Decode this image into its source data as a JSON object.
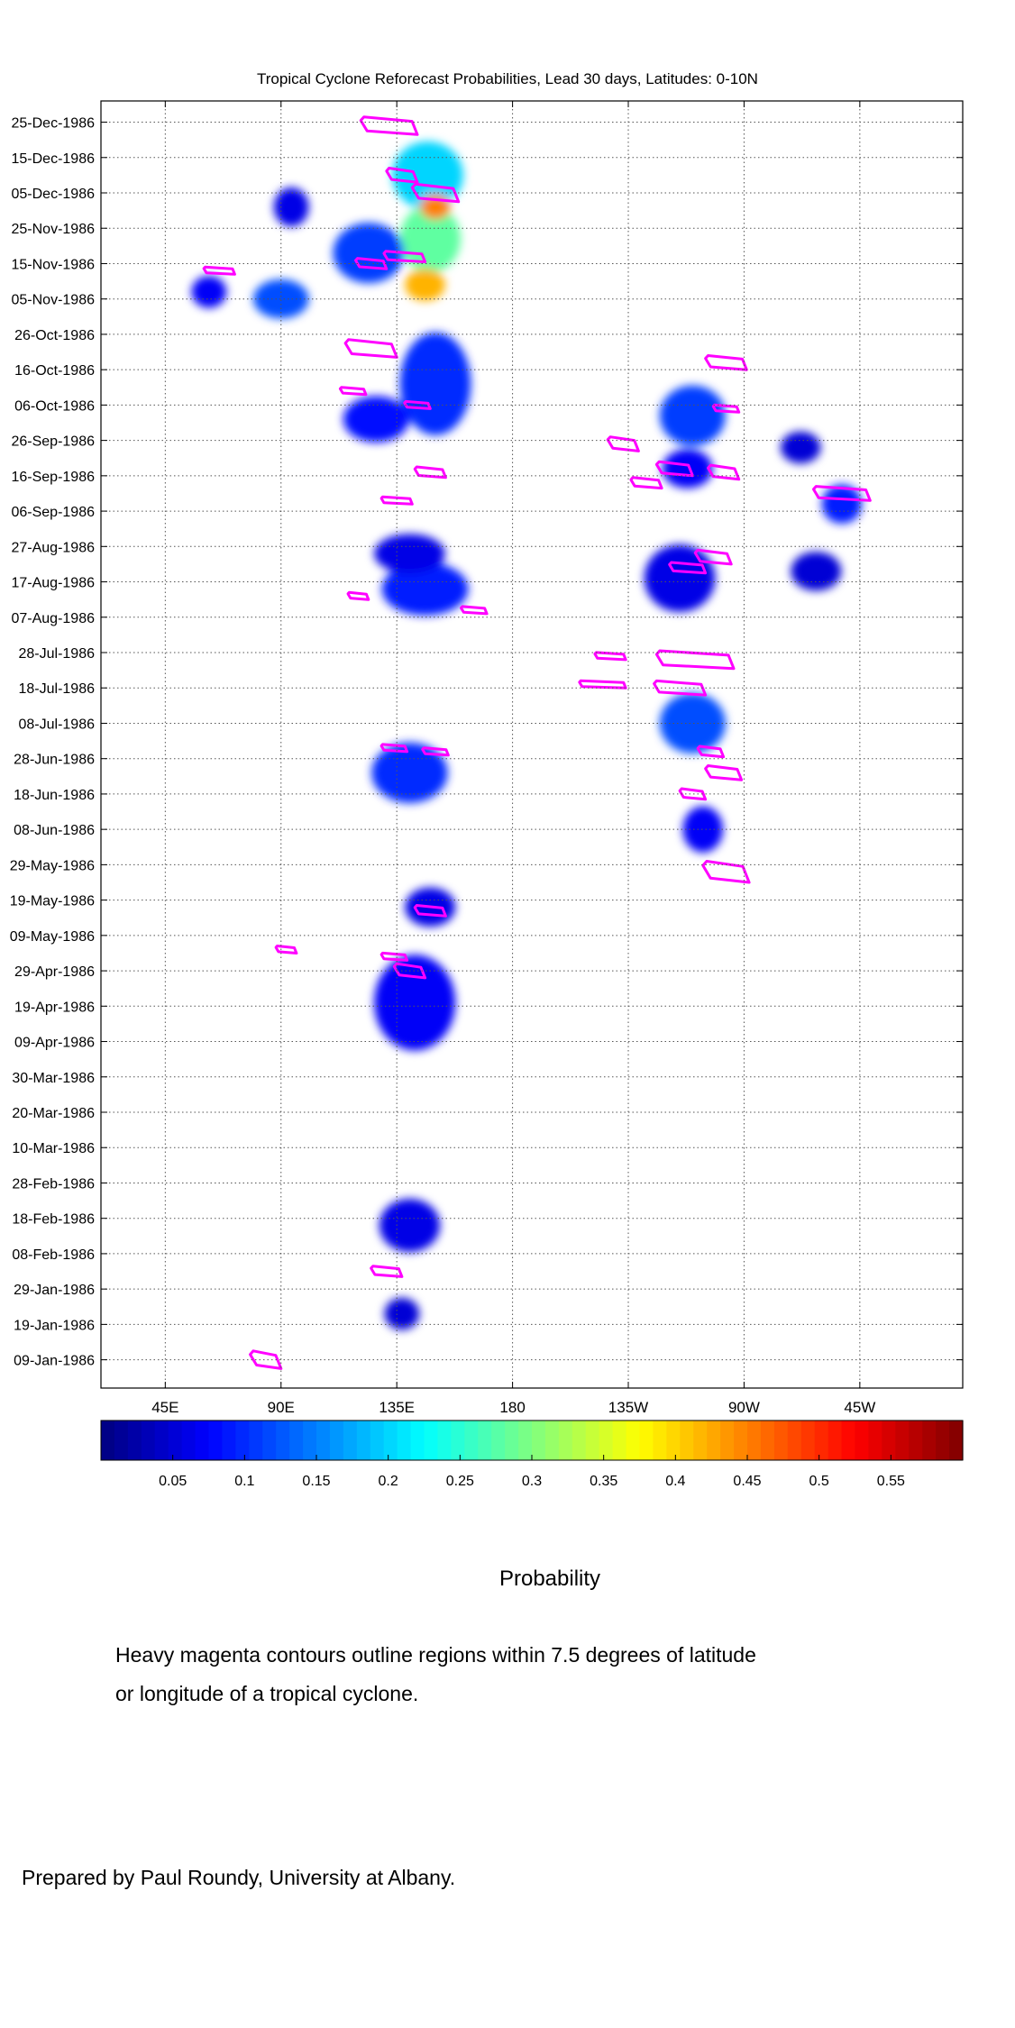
{
  "chart_data": {
    "type": "heatmap",
    "title": "Tropical Cyclone Reforecast Probabilities, Lead 30 days, Latitudes: 0-10N",
    "x_ticks": [
      {
        "label": "45E",
        "lon": 45
      },
      {
        "label": "90E",
        "lon": 90
      },
      {
        "label": "135E",
        "lon": 135
      },
      {
        "label": "180",
        "lon": 180
      },
      {
        "label": "135W",
        "lon": 225
      },
      {
        "label": "90W",
        "lon": 270
      },
      {
        "label": "45W",
        "lon": 315
      }
    ],
    "xlim": [
      20,
      355
    ],
    "y_ticks": [
      "25-Dec-1986",
      "15-Dec-1986",
      "05-Dec-1986",
      "25-Nov-1986",
      "15-Nov-1986",
      "05-Nov-1986",
      "26-Oct-1986",
      "16-Oct-1986",
      "06-Oct-1986",
      "26-Sep-1986",
      "16-Sep-1986",
      "06-Sep-1986",
      "27-Aug-1986",
      "17-Aug-1986",
      "07-Aug-1986",
      "28-Jul-1986",
      "18-Jul-1986",
      "08-Jul-1986",
      "28-Jun-1986",
      "18-Jun-1986",
      "08-Jun-1986",
      "29-May-1986",
      "19-May-1986",
      "09-May-1986",
      "29-Apr-1986",
      "19-Apr-1986",
      "09-Apr-1986",
      "30-Mar-1986",
      "20-Mar-1986",
      "10-Mar-1986",
      "28-Feb-1986",
      "18-Feb-1986",
      "08-Feb-1986",
      "29-Jan-1986",
      "19-Jan-1986",
      "09-Jan-1986"
    ],
    "ylim": [
      "01-Jan-1986",
      "31-Dec-1986"
    ],
    "colorbar": {
      "ticks": [
        "0.05",
        "0.1",
        "0.15",
        "0.2",
        "0.25",
        "0.3",
        "0.35",
        "0.4",
        "0.45",
        "0.5",
        "0.55"
      ],
      "range": [
        0.0,
        0.6
      ],
      "label": "Probability",
      "colormap": "jet"
    },
    "grid": true,
    "contour_color": "#ff00ff",
    "regions": [
      {
        "lon": 147,
        "date": "10-Dec-1986",
        "dlon": 22,
        "days": 16,
        "p": 0.2
      },
      {
        "lon": 148,
        "date": "22-Nov-1986",
        "dlon": 18,
        "days": 16,
        "p": 0.28
      },
      {
        "lon": 146,
        "date": "09-Nov-1986",
        "dlon": 10,
        "days": 6,
        "p": 0.42
      },
      {
        "lon": 150,
        "date": "01-Dec-1986",
        "dlon": 6,
        "days": 4,
        "p": 0.45
      },
      {
        "lon": 150,
        "date": "12-Oct-1986",
        "dlon": 22,
        "days": 26,
        "p": 0.1
      },
      {
        "lon": 124,
        "date": "18-Nov-1986",
        "dlon": 22,
        "days": 14,
        "p": 0.11
      },
      {
        "lon": 90,
        "date": "05-Nov-1986",
        "dlon": 16,
        "days": 8,
        "p": 0.12
      },
      {
        "lon": 94,
        "date": "01-Dec-1986",
        "dlon": 8,
        "days": 8,
        "p": 0.06
      },
      {
        "lon": 62,
        "date": "07-Nov-1986",
        "dlon": 8,
        "days": 6,
        "p": 0.07
      },
      {
        "lon": 127,
        "date": "02-Oct-1986",
        "dlon": 20,
        "days": 10,
        "p": 0.08
      },
      {
        "lon": 146,
        "date": "15-Aug-1986",
        "dlon": 28,
        "days": 12,
        "p": 0.09
      },
      {
        "lon": 140,
        "date": "25-Aug-1986",
        "dlon": 22,
        "days": 8,
        "p": 0.06
      },
      {
        "lon": 140,
        "date": "24-Jun-1986",
        "dlon": 24,
        "days": 14,
        "p": 0.1
      },
      {
        "lon": 148,
        "date": "17-May-1986",
        "dlon": 14,
        "days": 8,
        "p": 0.06
      },
      {
        "lon": 142,
        "date": "20-Apr-1986",
        "dlon": 26,
        "days": 24,
        "p": 0.07
      },
      {
        "lon": 140,
        "date": "16-Feb-1986",
        "dlon": 18,
        "days": 12,
        "p": 0.06
      },
      {
        "lon": 137,
        "date": "22-Jan-1986",
        "dlon": 8,
        "days": 6,
        "p": 0.05
      },
      {
        "lon": 250,
        "date": "03-Oct-1986",
        "dlon": 20,
        "days": 14,
        "p": 0.11
      },
      {
        "lon": 248,
        "date": "18-Sep-1986",
        "dlon": 14,
        "days": 8,
        "p": 0.07
      },
      {
        "lon": 245,
        "date": "18-Aug-1986",
        "dlon": 22,
        "days": 16,
        "p": 0.06
      },
      {
        "lon": 250,
        "date": "08-Jul-1986",
        "dlon": 20,
        "days": 14,
        "p": 0.12
      },
      {
        "lon": 254,
        "date": "08-Jun-1986",
        "dlon": 10,
        "days": 10,
        "p": 0.07
      },
      {
        "lon": 308,
        "date": "08-Sep-1986",
        "dlon": 10,
        "days": 8,
        "p": 0.09
      },
      {
        "lon": 298,
        "date": "20-Aug-1986",
        "dlon": 14,
        "days": 8,
        "p": 0.05
      },
      {
        "lon": 292,
        "date": "24-Sep-1986",
        "dlon": 10,
        "days": 6,
        "p": 0.05
      }
    ],
    "tc_contours": [
      {
        "lon": 132,
        "date": "24-Dec-1986",
        "dlon": 22,
        "days": 5
      },
      {
        "lon": 150,
        "date": "05-Dec-1986",
        "dlon": 18,
        "days": 5
      },
      {
        "lon": 137,
        "date": "10-Dec-1986",
        "dlon": 12,
        "days": 4
      },
      {
        "lon": 125,
        "date": "15-Nov-1986",
        "dlon": 12,
        "days": 3
      },
      {
        "lon": 138,
        "date": "17-Nov-1986",
        "dlon": 16,
        "days": 3
      },
      {
        "lon": 66,
        "date": "13-Nov-1986",
        "dlon": 12,
        "days": 2
      },
      {
        "lon": 125,
        "date": "22-Oct-1986",
        "dlon": 20,
        "days": 5
      },
      {
        "lon": 118,
        "date": "10-Oct-1986",
        "dlon": 10,
        "days": 2
      },
      {
        "lon": 143,
        "date": "06-Oct-1986",
        "dlon": 10,
        "days": 2
      },
      {
        "lon": 148,
        "date": "17-Sep-1986",
        "dlon": 12,
        "days": 3
      },
      {
        "lon": 135,
        "date": "09-Sep-1986",
        "dlon": 12,
        "days": 2
      },
      {
        "lon": 120,
        "date": "13-Aug-1986",
        "dlon": 8,
        "days": 2
      },
      {
        "lon": 165,
        "date": "09-Aug-1986",
        "dlon": 10,
        "days": 2
      },
      {
        "lon": 218,
        "date": "27-Jul-1986",
        "dlon": 12,
        "days": 2
      },
      {
        "lon": 215,
        "date": "19-Jul-1986",
        "dlon": 18,
        "days": 2
      },
      {
        "lon": 251,
        "date": "26-Jul-1986",
        "dlon": 30,
        "days": 5
      },
      {
        "lon": 245,
        "date": "18-Jul-1986",
        "dlon": 20,
        "days": 4
      },
      {
        "lon": 134,
        "date": "01-Jul-1986",
        "dlon": 10,
        "days": 2
      },
      {
        "lon": 150,
        "date": "30-Jun-1986",
        "dlon": 10,
        "days": 2
      },
      {
        "lon": 257,
        "date": "30-Jun-1986",
        "dlon": 10,
        "days": 3
      },
      {
        "lon": 262,
        "date": "24-Jun-1986",
        "dlon": 14,
        "days": 4
      },
      {
        "lon": 250,
        "date": "18-Jun-1986",
        "dlon": 10,
        "days": 3
      },
      {
        "lon": 263,
        "date": "27-May-1986",
        "dlon": 18,
        "days": 6
      },
      {
        "lon": 92,
        "date": "05-May-1986",
        "dlon": 8,
        "days": 1
      },
      {
        "lon": 148,
        "date": "16-May-1986",
        "dlon": 12,
        "days": 3
      },
      {
        "lon": 134,
        "date": "03-May-1986",
        "dlon": 10,
        "days": 2
      },
      {
        "lon": 140,
        "date": "29-Apr-1986",
        "dlon": 12,
        "days": 4
      },
      {
        "lon": 131,
        "date": "03-Feb-1986",
        "dlon": 12,
        "days": 3
      },
      {
        "lon": 84,
        "date": "09-Jan-1986",
        "dlon": 12,
        "days": 5
      },
      {
        "lon": 263,
        "date": "18-Oct-1986",
        "dlon": 16,
        "days": 4
      },
      {
        "lon": 263,
        "date": "05-Oct-1986",
        "dlon": 10,
        "days": 2
      },
      {
        "lon": 223,
        "date": "25-Sep-1986",
        "dlon": 12,
        "days": 4
      },
      {
        "lon": 243,
        "date": "18-Sep-1986",
        "dlon": 14,
        "days": 4
      },
      {
        "lon": 262,
        "date": "17-Sep-1986",
        "dlon": 12,
        "days": 4
      },
      {
        "lon": 232,
        "date": "14-Sep-1986",
        "dlon": 12,
        "days": 3
      },
      {
        "lon": 308,
        "date": "11-Sep-1986",
        "dlon": 22,
        "days": 4
      },
      {
        "lon": 258,
        "date": "24-Aug-1986",
        "dlon": 14,
        "days": 4
      },
      {
        "lon": 248,
        "date": "21-Aug-1986",
        "dlon": 14,
        "days": 3
      }
    ]
  },
  "colorbar_label": "Probability",
  "note": {
    "line1": "Heavy magenta contours outline regions within 7.5 degrees of latitude",
    "line2": "or longitude of a tropical cyclone."
  },
  "credit": "Prepared by Paul Roundy, University at Albany."
}
